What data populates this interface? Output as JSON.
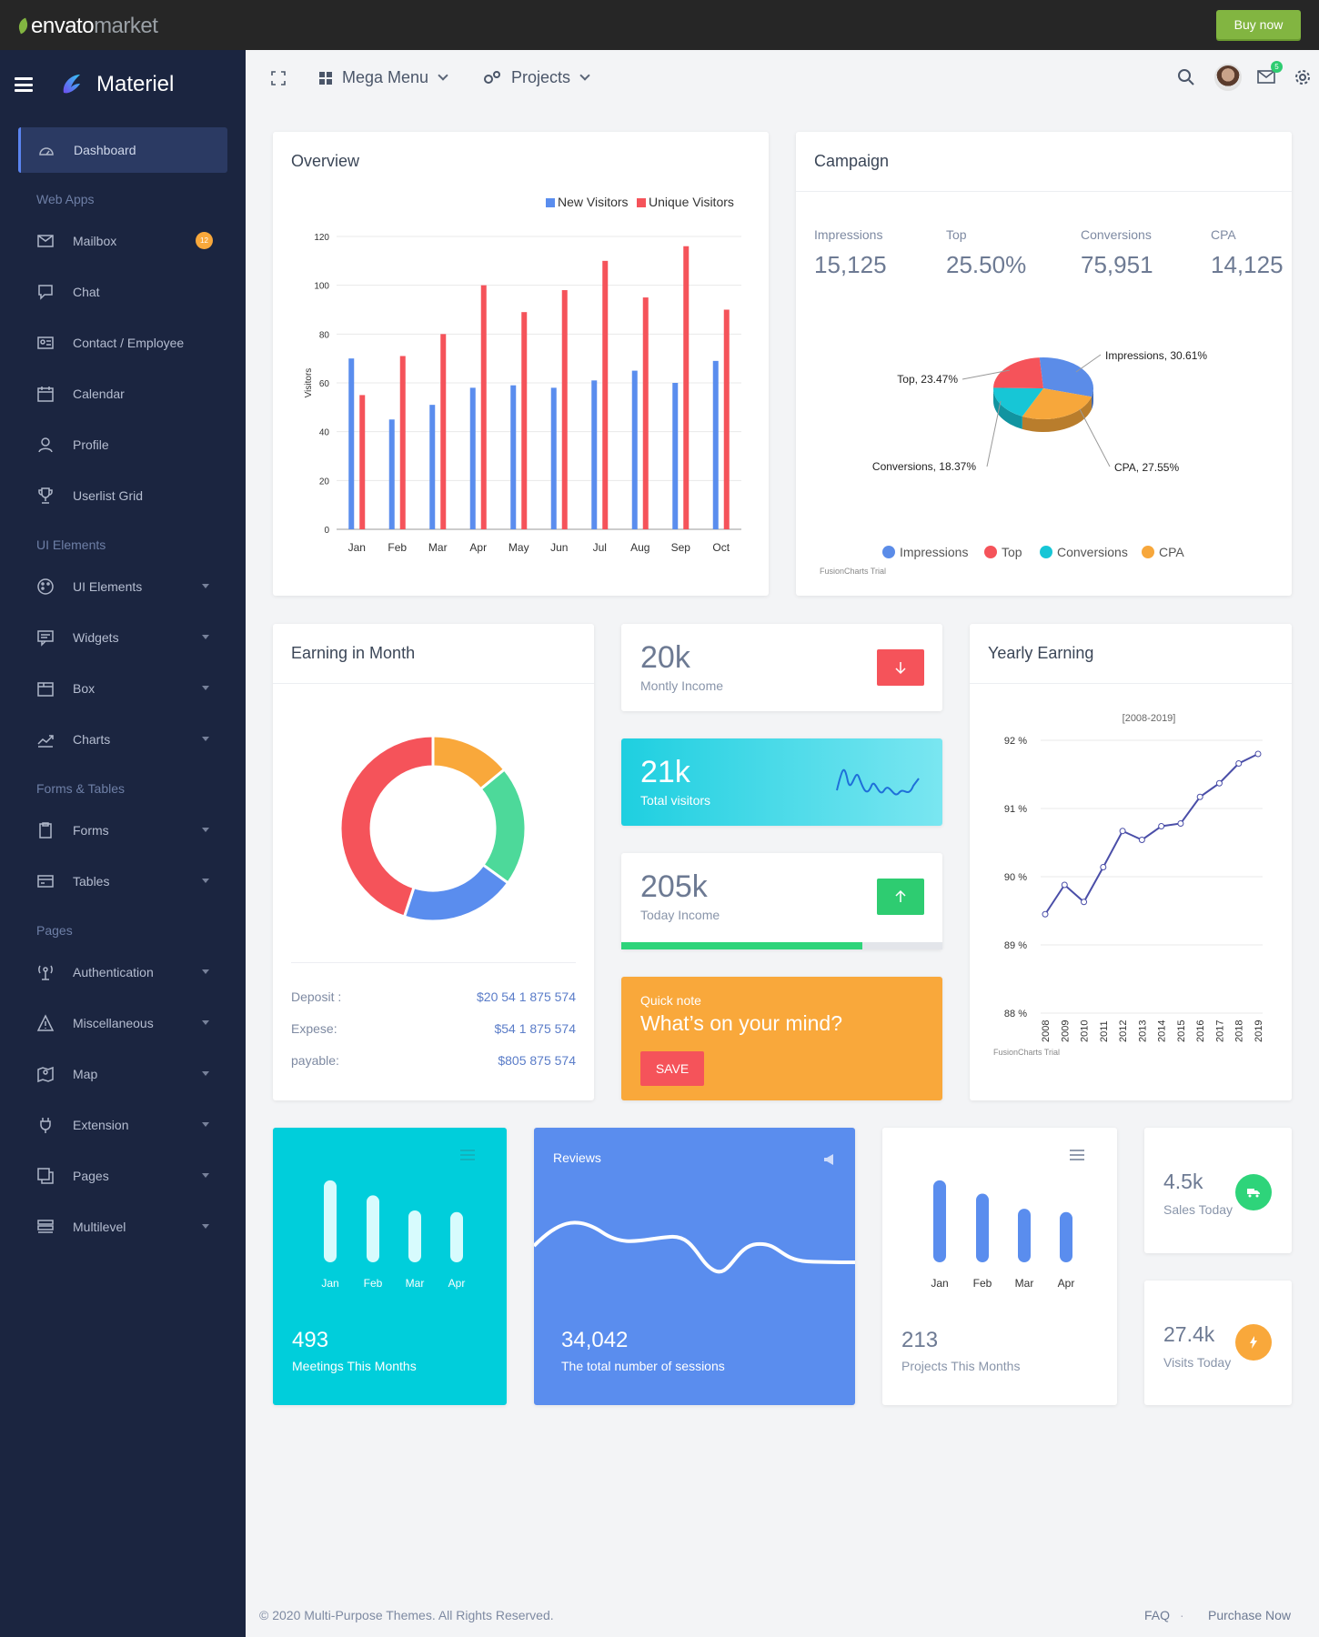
{
  "topbar": {
    "brand_main": "envato",
    "brand_sub": "market",
    "buy_label": "Buy now"
  },
  "sidebar": {
    "brand_name": "Materiel",
    "items": [
      {
        "label": "Dashboard",
        "icon": "dashboard-gauge-icon",
        "active": true
      },
      {
        "heading": "Web Apps"
      },
      {
        "label": "Mailbox",
        "icon": "envelope-icon",
        "badge": "12"
      },
      {
        "label": "Chat",
        "icon": "chat-bubble-icon"
      },
      {
        "label": "Contact / Employee",
        "icon": "id-card-icon"
      },
      {
        "label": "Calendar",
        "icon": "calendar-icon"
      },
      {
        "label": "Profile",
        "icon": "user-icon"
      },
      {
        "label": "Userlist Grid",
        "icon": "trophy-icon"
      },
      {
        "heading": "UI Elements"
      },
      {
        "label": "UI Elements",
        "icon": "palette-icon",
        "caret": true
      },
      {
        "label": "Widgets",
        "icon": "widget-chat-icon",
        "caret": true
      },
      {
        "label": "Box",
        "icon": "box-icon",
        "caret": true
      },
      {
        "label": "Charts",
        "icon": "trending-line-icon",
        "caret": true
      },
      {
        "heading": "Forms & Tables"
      },
      {
        "label": "Forms",
        "icon": "clipboard-icon",
        "caret": true
      },
      {
        "label": "Tables",
        "icon": "credit-card-icon",
        "caret": true
      },
      {
        "heading": "Pages"
      },
      {
        "label": "Authentication",
        "icon": "antenna-icon",
        "caret": true
      },
      {
        "label": "Miscellaneous",
        "icon": "warning-triangle-icon",
        "caret": true
      },
      {
        "label": "Map",
        "icon": "map-icon",
        "caret": true
      },
      {
        "label": "Extension",
        "icon": "plug-icon",
        "caret": true
      },
      {
        "label": "Pages",
        "icon": "pages-icon",
        "caret": true
      },
      {
        "label": "Multilevel",
        "icon": "layers-icon",
        "caret": true
      }
    ]
  },
  "header": {
    "mega_menu": "Mega Menu",
    "projects": "Projects",
    "mail_badge": "5"
  },
  "overview": {
    "title": "Overview",
    "chart_data": {
      "type": "bar",
      "categories": [
        "Jan",
        "Feb",
        "Mar",
        "Apr",
        "May",
        "Jun",
        "Jul",
        "Aug",
        "Sep",
        "Oct"
      ],
      "series": [
        {
          "name": "New Visitors",
          "color": "#5a8dee",
          "values": [
            70,
            45,
            51,
            58,
            59,
            58,
            61,
            65,
            60,
            69
          ]
        },
        {
          "name": "Unique Visitors",
          "color": "#f5535a",
          "values": [
            55,
            71,
            80,
            100,
            89,
            98,
            110,
            95,
            116,
            90
          ]
        }
      ],
      "ylabel": "Visitors",
      "ylim": [
        0,
        120
      ],
      "yticks": [
        0,
        20,
        40,
        60,
        80,
        100,
        120
      ],
      "legend": "top-right",
      "grid": true
    }
  },
  "campaign": {
    "title": "Campaign",
    "stats": [
      {
        "label": "Impressions",
        "value": "15,125"
      },
      {
        "label": "Top",
        "value": "25.50%"
      },
      {
        "label": "Conversions",
        "value": "75,951"
      },
      {
        "label": "CPA",
        "value": "14,125"
      }
    ],
    "chart_data": {
      "type": "pie",
      "slices": [
        {
          "label": "Impressions",
          "value": 30.61,
          "color": "#5b8ce8",
          "text": "Impressions, 30.61%"
        },
        {
          "label": "CPA",
          "value": 27.55,
          "color": "#f7a73b",
          "text": "CPA, 27.55%"
        },
        {
          "label": "Conversions",
          "value": 18.37,
          "color": "#17c6d6",
          "text": "Conversions, 18.37%"
        },
        {
          "label": "Top",
          "value": 23.47,
          "color": "#f5535a",
          "text": "Top, 23.47%"
        }
      ],
      "legend": "bottom"
    },
    "watermark": "FusionCharts Trial"
  },
  "earning_month": {
    "title": "Earning in Month",
    "chart_data": {
      "type": "pie",
      "slices": [
        {
          "value": 14,
          "color": "#f9a83b"
        },
        {
          "value": 21,
          "color": "#4dd99a"
        },
        {
          "value": 20,
          "color": "#5a8dee"
        },
        {
          "value": 45,
          "color": "#f5535a"
        }
      ]
    },
    "rows": [
      {
        "label": "Deposit :",
        "value": "$20 54 1 875 574"
      },
      {
        "label": "Expese:",
        "value": "$54 1 875 574"
      },
      {
        "label": "payable:",
        "value": "$805 875 574"
      }
    ]
  },
  "kpi": {
    "monthly": {
      "value": "20k",
      "label": "Montly Income"
    },
    "visitors": {
      "value": "21k",
      "label": "Total visitors"
    },
    "today": {
      "value": "205k",
      "label": "Today Income",
      "progress": 0.75
    },
    "note": {
      "label": "Quick note",
      "text": "What’s on your mind?",
      "button": "SAVE"
    }
  },
  "yearly": {
    "title": "Yearly Earning",
    "chart_data": {
      "type": "line",
      "subtitle": "[2008-2019]",
      "x": [
        "2008",
        "2009",
        "2010",
        "2011",
        "2012",
        "2013",
        "2014",
        "2015",
        "2016",
        "2017",
        "2018",
        "2019"
      ],
      "values": [
        89.45,
        89.88,
        89.63,
        90.14,
        90.67,
        90.54,
        90.74,
        90.78,
        91.17,
        91.37,
        91.66,
        91.8
      ],
      "ylim": [
        88,
        92
      ],
      "yticks": [
        "88 %",
        "89 %",
        "90 %",
        "91 %",
        "92 %"
      ],
      "color": "#4a4ea8"
    },
    "watermark": "FusionCharts Trial"
  },
  "meetings": {
    "value": "493",
    "label": "Meetings This Months",
    "chart_data": {
      "type": "bar",
      "categories": [
        "Jan",
        "Feb",
        "Mar",
        "Apr"
      ],
      "values": [
        0.98,
        0.8,
        0.62,
        0.6
      ]
    }
  },
  "reviews": {
    "title": "Reviews",
    "value": "34,042",
    "label": "The total number of sessions"
  },
  "projects": {
    "value": "213",
    "label": "Projects This Months",
    "chart_data": {
      "type": "bar",
      "categories": [
        "Jan",
        "Feb",
        "Mar",
        "Apr"
      ],
      "values": [
        0.98,
        0.82,
        0.64,
        0.6
      ]
    }
  },
  "sales": {
    "value": "4.5k",
    "label": "Sales Today"
  },
  "visits": {
    "value": "27.4k",
    "label": "Visits Today"
  },
  "footer": {
    "copyright": "© 2020 Multi-Purpose Themes. All Rights Reserved.",
    "faq": "FAQ",
    "purchase": "Purchase Now"
  }
}
